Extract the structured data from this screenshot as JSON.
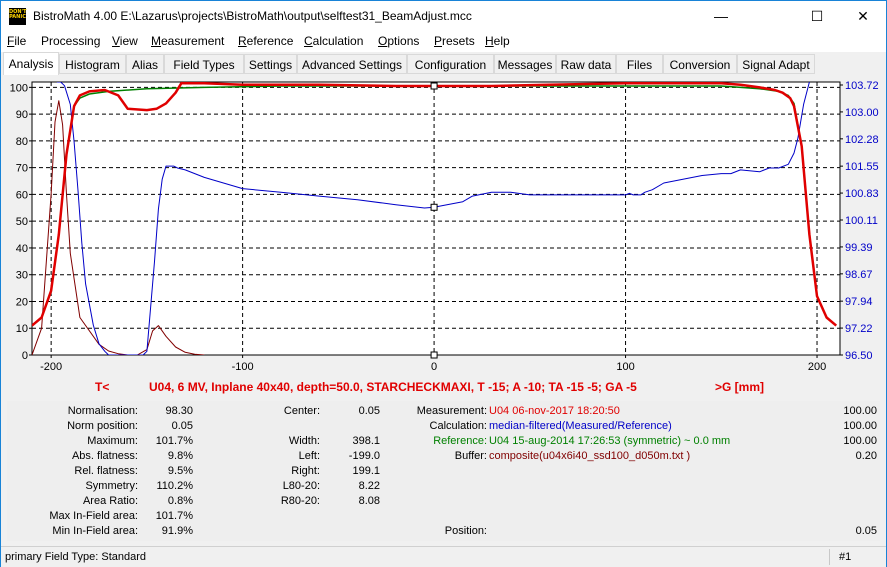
{
  "window": {
    "app_icon_text": "DON'T PANIC",
    "title": "BistroMath 4.00   E:\\Lazarus\\projects\\BistroMath\\output\\selftest31_BeamAdjust.mcc",
    "minimize": "—",
    "maximize": "☐",
    "close": "✕"
  },
  "menu": [
    {
      "label": "File",
      "ul": "F",
      "rest": "ile"
    },
    {
      "label": "Processing",
      "ul": "",
      "rest": "Processing"
    },
    {
      "label": "View",
      "ul": "V",
      "rest": "iew"
    },
    {
      "label": "Measurement",
      "ul": "M",
      "rest": "easurement"
    },
    {
      "label": "Reference",
      "ul": "R",
      "rest": "eference"
    },
    {
      "label": "Calculation",
      "ul": "C",
      "rest": "alculation"
    },
    {
      "label": "Options",
      "ul": "O",
      "rest": "ptions"
    },
    {
      "label": "Presets",
      "ul": "P",
      "rest": "resets"
    },
    {
      "label": "Help",
      "ul": "H",
      "rest": "elp"
    }
  ],
  "tabs": [
    "Analysis",
    "Histogram",
    "Alias",
    "Field Types",
    "Settings",
    "Advanced Settings",
    "Configuration",
    "Messages",
    "Raw data",
    "Files",
    "Conversion",
    "Signal Adapt"
  ],
  "active_tab": "Analysis",
  "chart_caption": {
    "left": "T<",
    "center": "U04, 6 MV, Inplane 40x40, depth=50.0, STARCHECKMAXI, T -15; A -10; TA -15 -5; GA -5",
    "right": ">G  [mm]"
  },
  "chart_data": {
    "type": "line",
    "xlim": [
      -210,
      212
    ],
    "ylim": [
      0,
      102
    ],
    "y2lim": [
      96.5,
      103.8
    ],
    "x_ticks": [
      -200,
      -100,
      0,
      100,
      200
    ],
    "y_ticks": [
      0,
      10,
      20,
      30,
      40,
      50,
      60,
      70,
      80,
      90,
      100
    ],
    "y2_ticks": [
      "96.50",
      "97.22",
      "97.94",
      "98.67",
      "99.39",
      "100.11",
      "100.83",
      "101.55",
      "102.28",
      "103.00",
      "103.72"
    ],
    "colors": {
      "measured": "#e00000",
      "reference": "#008000",
      "ratio": "#0000c8",
      "derivative": "#800000",
      "grid": "#000000"
    },
    "series": [
      {
        "name": "reference",
        "x": [
          -210,
          -205,
          -200,
          -196,
          -192,
          -188,
          -185,
          -180,
          -170,
          -150,
          -120,
          -80,
          -40,
          0,
          40,
          80,
          120,
          150,
          170,
          180,
          185,
          188,
          192,
          196,
          200,
          205,
          210
        ],
        "y": [
          11,
          14,
          24,
          45,
          75,
          93,
          96,
          97.5,
          98.5,
          99.5,
          100,
          100.5,
          100.5,
          100.5,
          100.5,
          100.5,
          100.5,
          100.5,
          99.5,
          98.5,
          97,
          94,
          78,
          45,
          22,
          14,
          11
        ]
      },
      {
        "name": "measured",
        "x": [
          -210,
          -205,
          -200,
          -196,
          -192,
          -188,
          -185,
          -180,
          -172,
          -165,
          -160,
          -150,
          -145,
          -140,
          -135,
          -132,
          -120,
          -100,
          -60,
          -20,
          0,
          30,
          60,
          100,
          140,
          150,
          160,
          170,
          178,
          182,
          186,
          188,
          192,
          196,
          200,
          205,
          210
        ],
        "y": [
          11,
          14,
          24,
          45,
          75,
          93,
          97,
          98.5,
          99,
          97,
          92,
          91.5,
          92,
          94,
          98,
          101.5,
          101.5,
          101,
          101,
          100.5,
          100.5,
          100.5,
          101,
          101.5,
          101.5,
          101.5,
          101,
          100,
          99,
          98,
          96,
          93,
          78,
          45,
          22,
          14,
          11
        ]
      },
      {
        "name": "ratio_right_axis",
        "x": [
          -197,
          -195,
          -193,
          -190,
          -188,
          -186,
          -184,
          -182,
          -178,
          -175,
          -172,
          -170,
          -165,
          -160,
          -155,
          -152,
          -150,
          -148,
          -146,
          -144,
          -142,
          -140,
          -138,
          -136,
          -134,
          -130,
          -120,
          -100,
          -80,
          -60,
          -40,
          -20,
          -5,
          0,
          5,
          15,
          20,
          30,
          40,
          50,
          60,
          80,
          100,
          102,
          104,
          108,
          110,
          114,
          120,
          140,
          150,
          155,
          160,
          170,
          175,
          180,
          185,
          188,
          190,
          193,
          196
        ],
        "y": [
          103.8,
          103.8,
          103.7,
          103.2,
          102.2,
          100.9,
          99.5,
          98.4,
          97.3,
          96.8,
          96.6,
          96.5,
          96.5,
          96.5,
          96.5,
          96.5,
          96.6,
          97.8,
          99.0,
          100.4,
          101.2,
          101.55,
          101.55,
          101.55,
          101.5,
          101.45,
          101.25,
          100.95,
          100.85,
          100.75,
          100.65,
          100.52,
          100.43,
          100.45,
          100.5,
          100.6,
          100.75,
          100.85,
          100.85,
          100.78,
          100.78,
          100.78,
          100.78,
          100.82,
          100.78,
          100.78,
          100.85,
          100.92,
          101.1,
          101.3,
          101.35,
          101.35,
          101.45,
          101.4,
          101.5,
          101.5,
          101.6,
          101.9,
          102.3,
          103.2,
          103.8
        ]
      },
      {
        "name": "derivative",
        "x": [
          -210,
          -205,
          -200,
          -198,
          -196,
          -194,
          -192,
          -190,
          -185,
          -175,
          -170,
          -165,
          -160,
          -155,
          -150,
          -147,
          -144,
          -140,
          -135,
          -130,
          -125,
          -120
        ],
        "y": [
          0,
          10,
          60,
          87,
          95,
          86,
          60,
          38,
          14,
          4,
          1.5,
          0.5,
          0,
          0,
          2,
          9,
          11,
          7,
          3,
          1,
          0.3,
          0
        ]
      }
    ]
  },
  "stats_left": [
    {
      "label": "Normalisation:",
      "value": "98.30"
    },
    {
      "label": "Norm position:",
      "value": "0.05"
    },
    {
      "label": "Maximum:",
      "value": "101.7%"
    },
    {
      "label": "Abs. flatness:",
      "value": "9.8%"
    },
    {
      "label": "Rel. flatness:",
      "value": "9.5%"
    },
    {
      "label": "Symmetry:",
      "value": "110.2%"
    },
    {
      "label": "Area Ratio:",
      "value": "0.8%"
    },
    {
      "label": "Max In-Field area:",
      "value": "101.7%"
    },
    {
      "label": "Min In-Field area:",
      "value": "91.9%"
    }
  ],
  "stats_mid": [
    {
      "label": "Center:",
      "value": "0.05"
    },
    {
      "label": "",
      "value": ""
    },
    {
      "label": "Width:",
      "value": "398.1"
    },
    {
      "label": "Left:",
      "value": "-199.0"
    },
    {
      "label": "Right:",
      "value": "199.1"
    },
    {
      "label": "L80-20:",
      "value": "8.22"
    },
    {
      "label": "R80-20:",
      "value": "8.08"
    }
  ],
  "info": [
    {
      "label": "Measurement:",
      "text": "U04 06-nov-2017 18:20:50",
      "color": "#e00000",
      "value": "100.00"
    },
    {
      "label": "Calculation:",
      "text": "median-filtered(Measured/Reference)",
      "color": "#0000c8",
      "value": "100.00"
    },
    {
      "label": "Reference:",
      "text": "U04 15-aug-2014 17:26:53 (symmetric) ~ 0.0 mm",
      "color": "#008000",
      "value": "100.00"
    },
    {
      "label": "Buffer:",
      "text": "composite(u04x6i40_ssd100_d050m.txt )",
      "color": "#800000",
      "value": "0.20"
    }
  ],
  "position": {
    "label": "Position:",
    "value": "0.05"
  },
  "status": {
    "text": "primary Field Type: Standard",
    "page": "#1"
  }
}
